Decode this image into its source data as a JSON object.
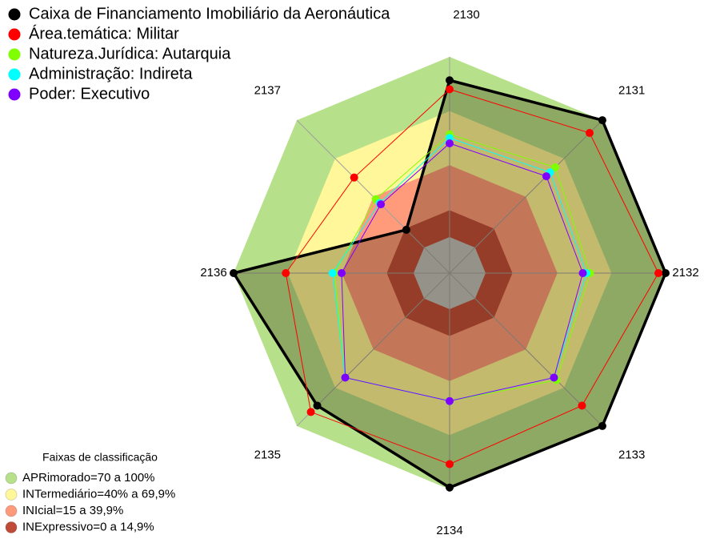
{
  "chart_data": {
    "type": "radar",
    "categories": [
      "2130",
      "2131",
      "2132",
      "2133",
      "2134",
      "2135",
      "2136",
      "2137"
    ],
    "ylim": [
      -20,
      100
    ],
    "series": [
      {
        "name": "Caixa de Financiamento Imobiliário da Aeronáutica",
        "color": "#000000",
        "values": [
          87,
          100,
          100,
          100,
          99,
          84,
          100,
          14
        ]
      },
      {
        "name": "Área.temática: Militar",
        "color": "#ff0000",
        "values": [
          82,
          90,
          96,
          84,
          86,
          89,
          71,
          55
        ]
      },
      {
        "name": "Natureza.Jurídica: Autarquia",
        "color": "#80ff00",
        "values": [
          57,
          63,
          58,
          64,
          51,
          62,
          44,
          38
        ]
      },
      {
        "name": "Administração: Indireta",
        "color": "#00ffff",
        "values": [
          55,
          59,
          56,
          62,
          51,
          62,
          45,
          35
        ]
      },
      {
        "name": "Poder: Executivo",
        "color": "#8000ff",
        "values": [
          52,
          56,
          54,
          62,
          51,
          62,
          40,
          34
        ]
      }
    ],
    "bands_title": "Faixas de classificação",
    "bands": [
      {
        "label": "APRimorado=70 a 100%",
        "color": "#b6e08a",
        "range": [
          70,
          100
        ]
      },
      {
        "label": "INTermediário=40% a 69,9%",
        "color": "#fff799",
        "range": [
          40,
          69.9
        ]
      },
      {
        "label": "INIcial=15 a 39,9%",
        "color": "#ff9a7a",
        "range": [
          15,
          39.9
        ]
      },
      {
        "label": "INExpressivo=0 a 14,9%",
        "color": "#c04a38",
        "range": [
          0,
          14.9
        ]
      }
    ]
  }
}
